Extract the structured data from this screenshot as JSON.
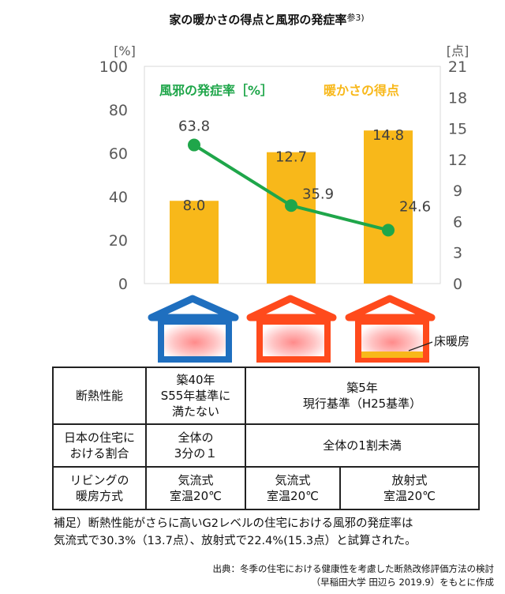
{
  "chart_data": {
    "type": "bar+line",
    "title": "家の暖かさの得点と風邪の発症率",
    "title_ref": "参3)",
    "left_axis": {
      "unit": "[%]",
      "range": [
        0,
        100
      ],
      "ticks": [
        "0",
        "20",
        "40",
        "60",
        "80",
        "100"
      ]
    },
    "right_axis": {
      "unit": "[点]",
      "range": [
        0,
        21
      ],
      "ticks": [
        "0",
        "3",
        "6",
        "9",
        "12",
        "15",
        "18",
        "21"
      ]
    },
    "categories": [
      "築40年 S55年基準に満たない",
      "築5年 現行基準 気流式",
      "築5年 現行基準 放射式"
    ],
    "series": [
      {
        "name": "暖かさの得点",
        "type": "bar",
        "axis": "right",
        "color": "#f8b81a",
        "values": [
          8.0,
          12.7,
          14.8
        ],
        "labels": [
          "8.0",
          "12.7",
          "14.8"
        ]
      },
      {
        "name": "風邪の発症率［%］",
        "type": "line",
        "axis": "left",
        "color": "#1fa64a",
        "values": [
          63.8,
          35.9,
          24.6
        ],
        "labels": [
          "63.8",
          "35.9",
          "24.6"
        ]
      }
    ],
    "legend": {
      "line_label": "風邪の発症率［%］",
      "bar_label": "暖かさの得点"
    }
  },
  "houses": [
    {
      "color": "#1f6fbf"
    },
    {
      "color": "#ff4a1c"
    },
    {
      "color": "#ff4a1c",
      "floor_heating_color": "#f8b81a",
      "floor_heating_label": "床暖房"
    }
  ],
  "table": {
    "row1": {
      "header": "断熱性能",
      "old": "築40年\nS55年基準に\n満たない",
      "new": "築5年\n現行基準（H25基準）"
    },
    "row2": {
      "header": "日本の住宅に\nおける割合",
      "old": "全体の\n3分の１",
      "new": "全体の1割未満"
    },
    "row3": {
      "header": "リビングの\n暖房方式",
      "old": "気流式\n室温20℃",
      "mid": "気流式\n室温20℃",
      "new": "放射式\n室温20℃"
    }
  },
  "note": "補足）断熱性能がさらに高いG2レベルの住宅における風邪の発症率は\n気流式で30.3%（13.7点）、放射式で22.4%(15.3点）と試算された。",
  "source": "出典：冬季の住宅における健康性を考慮した断熱改修評価方法の検討\n（早稲田大学 田辺ら 2019.9）をもとに作成"
}
